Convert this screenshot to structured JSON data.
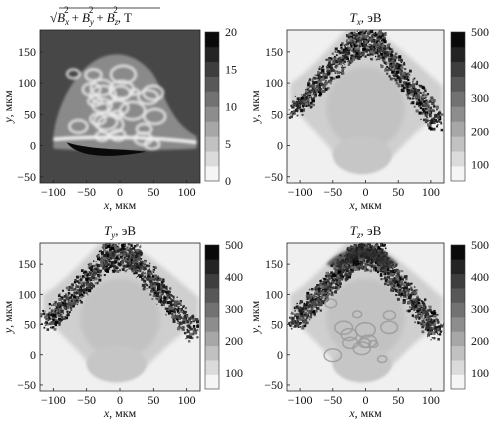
{
  "chart_data": [
    {
      "type": "heatmap",
      "title_parts": {
        "sqrt": "√",
        "b": "B",
        "x": "x",
        "y": "y",
        "z": "z",
        "sq": "2",
        "plus": "+",
        "unit": ", T"
      },
      "xlabel": {
        "var": "x",
        "unit": ", мкм"
      },
      "ylabel": {
        "var": "y",
        "unit": ", мкм"
      },
      "xlim": [
        -120,
        120
      ],
      "ylim": [
        -60,
        185
      ],
      "xticks": [
        "−100",
        "−50",
        "0",
        "50",
        "100"
      ],
      "yticks": [
        "−50",
        "0",
        "50",
        "100",
        "150"
      ],
      "colorbar": {
        "min": 0,
        "max": 20,
        "ticks": [
          "0",
          "5",
          "10",
          "15",
          "20"
        ]
      },
      "background_level": 0.72
    },
    {
      "type": "heatmap",
      "title": {
        "var": "T",
        "sub": "x",
        "unit": ", эВ"
      },
      "xlabel": {
        "var": "x",
        "unit": ", мкм"
      },
      "ylabel": {
        "var": "y",
        "unit": ", мкм"
      },
      "xlim": [
        -120,
        120
      ],
      "ylim": [
        -60,
        185
      ],
      "xticks": [
        "−100",
        "−50",
        "0",
        "50",
        "100"
      ],
      "yticks": [
        "−50",
        "0",
        "50",
        "100",
        "150"
      ],
      "colorbar": {
        "min": 50,
        "max": 500,
        "ticks": [
          "100",
          "200",
          "300",
          "400",
          "500"
        ]
      },
      "background_level": 0.06
    },
    {
      "type": "heatmap",
      "title": {
        "var": "T",
        "sub": "y",
        "unit": ", эВ"
      },
      "xlabel": {
        "var": "x",
        "unit": ", мкм"
      },
      "ylabel": {
        "var": "y",
        "unit": ", мкм"
      },
      "xlim": [
        -120,
        120
      ],
      "ylim": [
        -60,
        185
      ],
      "xticks": [
        "−100",
        "−50",
        "0",
        "50",
        "100"
      ],
      "yticks": [
        "−50",
        "0",
        "50",
        "100",
        "150"
      ],
      "colorbar": {
        "min": 50,
        "max": 500,
        "ticks": [
          "100",
          "200",
          "300",
          "400",
          "500"
        ]
      },
      "background_level": 0.06
    },
    {
      "type": "heatmap",
      "title": {
        "var": "T",
        "sub": "z",
        "unit": ", эВ"
      },
      "xlabel": {
        "var": "x",
        "unit": ", мкм"
      },
      "ylabel": {
        "var": "y",
        "unit": ", мкм"
      },
      "xlim": [
        -120,
        120
      ],
      "ylim": [
        -60,
        185
      ],
      "xticks": [
        "−100",
        "−50",
        "0",
        "50",
        "100"
      ],
      "yticks": [
        "−50",
        "0",
        "50",
        "100",
        "150"
      ],
      "colorbar": {
        "min": 50,
        "max": 500,
        "ticks": [
          "100",
          "200",
          "300",
          "400",
          "500"
        ]
      },
      "background_level": 0.06
    }
  ]
}
